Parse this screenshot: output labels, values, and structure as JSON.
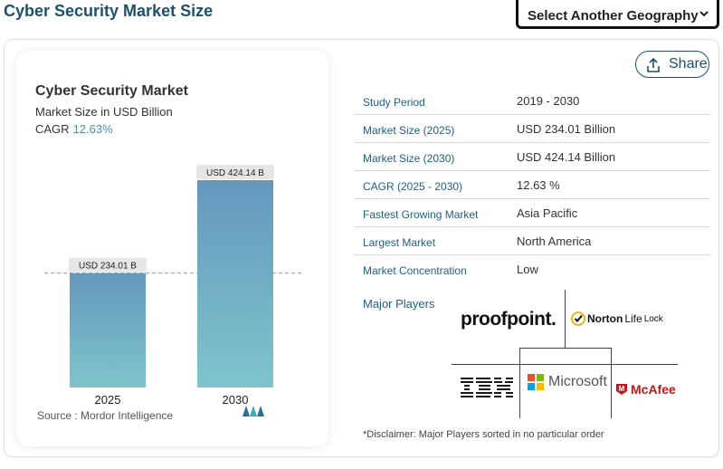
{
  "page": {
    "title": "Cyber Security Market Size",
    "geo_select": "Select Another Geography",
    "share_label": "Share"
  },
  "chart_data": {
    "type": "bar",
    "title": "Cyber Security Market",
    "subtitle": "Market Size in USD Billion",
    "cagr_label": "CAGR",
    "cagr_value": "12.63%",
    "categories": [
      "2025",
      "2030"
    ],
    "values": [
      234.01,
      424.14
    ],
    "data_labels": [
      "USD 234.01 B",
      "USD 424.14 B"
    ],
    "ylim": [
      0,
      424.14
    ],
    "reference_line_at": 234.01,
    "source": "Source : Mordor Intelligence",
    "colors": {
      "bar_top": "#6498bd",
      "bar_bottom": "#7fc4cb",
      "reference": "#6fa9c4"
    }
  },
  "stats": [
    {
      "label": "Study Period",
      "value": "2019 - 2030"
    },
    {
      "label": "Market Size (2025)",
      "value": "USD 234.01 Billion"
    },
    {
      "label": "Market Size (2030)",
      "value": "USD 424.14 Billion"
    },
    {
      "label": "CAGR (2025 - 2030)",
      "value": "12.63 %"
    },
    {
      "label": "Fastest Growing Market",
      "value": "Asia Pacific"
    },
    {
      "label": "Largest Market",
      "value": "North America"
    },
    {
      "label": "Market Concentration",
      "value": "Low"
    }
  ],
  "major_players": {
    "label": "Major Players",
    "logos": [
      "proofpoint.",
      "NortonLifeLock",
      "IBM",
      "Microsoft",
      "McAfee"
    ],
    "norton_parts": [
      "Norton",
      "Life",
      "Lock"
    ],
    "mcafee_symbol": "M"
  },
  "disclaimer": "*Disclaimer: Major Players sorted in no particular order"
}
